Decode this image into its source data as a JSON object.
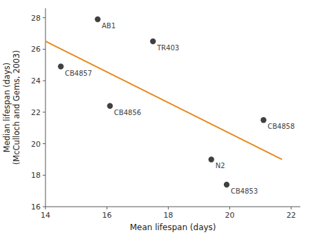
{
  "chart_data": {
    "type": "scatter",
    "xlabel": "Mean lifespan (days)",
    "ylabel": [
      "Median lifespan (days)",
      "(McCulloch and Gems, 2003)"
    ],
    "series": [
      {
        "type": "scatter",
        "color": "#404040",
        "marker": "circle",
        "x": [
          15.7,
          14.5,
          17.5,
          16.1,
          19.4,
          19.9,
          21.1
        ],
        "values": [
          27.9,
          24.9,
          26.5,
          22.4,
          19.0,
          17.4,
          21.5
        ],
        "labels": [
          "AB1",
          "CB4857",
          "TR403",
          "CB4856",
          "N2",
          "CB4853",
          "CB4858"
        ]
      },
      {
        "type": "line",
        "color": "#E8881A",
        "line_style": "solid",
        "x": [
          14.0,
          21.7
        ],
        "values": [
          26.5,
          19.0
        ]
      }
    ],
    "xlim": [
      14.0,
      22.3
    ],
    "ylim": [
      16.0,
      28.6
    ],
    "xticks": [
      14,
      16,
      18,
      20,
      22
    ],
    "yticks": [
      16,
      18,
      20,
      22,
      24,
      26,
      28
    ],
    "grid": false
  }
}
